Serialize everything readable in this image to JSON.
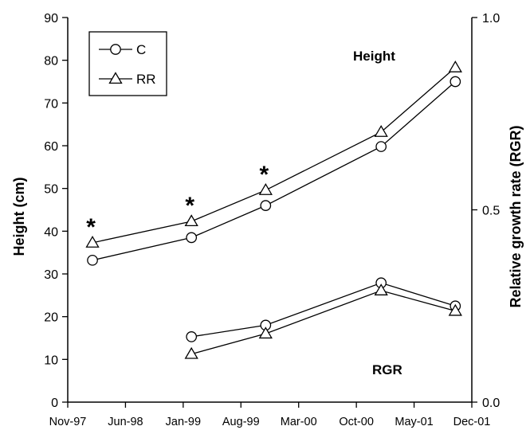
{
  "chart_data": {
    "type": "line",
    "x_ticks": [
      "Nov-97",
      "Jun-98",
      "Jan-99",
      "Aug-99",
      "Mar-00",
      "Oct-00",
      "May-01",
      "Dec-01"
    ],
    "y_left": {
      "label": "Height (cm)",
      "range": [
        0,
        90
      ],
      "ticks": [
        "0",
        "10",
        "20",
        "30",
        "40",
        "50",
        "60",
        "70",
        "80",
        "90"
      ]
    },
    "y_right": {
      "label": "Relative growth rate (RGR)",
      "range": [
        0.0,
        1.0
      ],
      "ticks": [
        "0.0",
        "0.5",
        "1.0"
      ]
    },
    "annotations": {
      "height": "Height",
      "rgr": "RGR",
      "significance_marker": "*"
    },
    "legend": [
      {
        "name": "C",
        "marker": "circle"
      },
      {
        "name": "RR",
        "marker": "triangle"
      }
    ],
    "height_series": [
      {
        "name": "C",
        "marker": "circle",
        "points": [
          {
            "x": "Feb-98",
            "y": 33.2
          },
          {
            "x": "Feb-99",
            "y": 38.5
          },
          {
            "x": "Nov-99",
            "y": 46.0
          },
          {
            "x": "Jan-01",
            "y": 59.8
          },
          {
            "x": "Oct-01",
            "y": 75.0
          }
        ]
      },
      {
        "name": "RR",
        "marker": "triangle",
        "points": [
          {
            "x": "Feb-98",
            "y": 37.3
          },
          {
            "x": "Feb-99",
            "y": 42.3
          },
          {
            "x": "Nov-99",
            "y": 49.6
          },
          {
            "x": "Jan-01",
            "y": 63.2
          },
          {
            "x": "Oct-01",
            "y": 78.3
          }
        ]
      }
    ],
    "rgr_series": [
      {
        "name": "C",
        "marker": "circle",
        "points": [
          {
            "x": "Feb-99",
            "y": 0.17
          },
          {
            "x": "Nov-99",
            "y": 0.2
          },
          {
            "x": "Jan-01",
            "y": 0.31
          },
          {
            "x": "Oct-01",
            "y": 0.25
          }
        ]
      },
      {
        "name": "RR",
        "marker": "triangle",
        "points": [
          {
            "x": "Feb-99",
            "y": 0.125
          },
          {
            "x": "Nov-99",
            "y": 0.178
          },
          {
            "x": "Jan-01",
            "y": 0.29
          },
          {
            "x": "Oct-01",
            "y": 0.237
          }
        ]
      }
    ],
    "significance_x": [
      "Feb-98",
      "Feb-99",
      "Nov-99"
    ],
    "grid": false,
    "legend_position": "top-left"
  }
}
